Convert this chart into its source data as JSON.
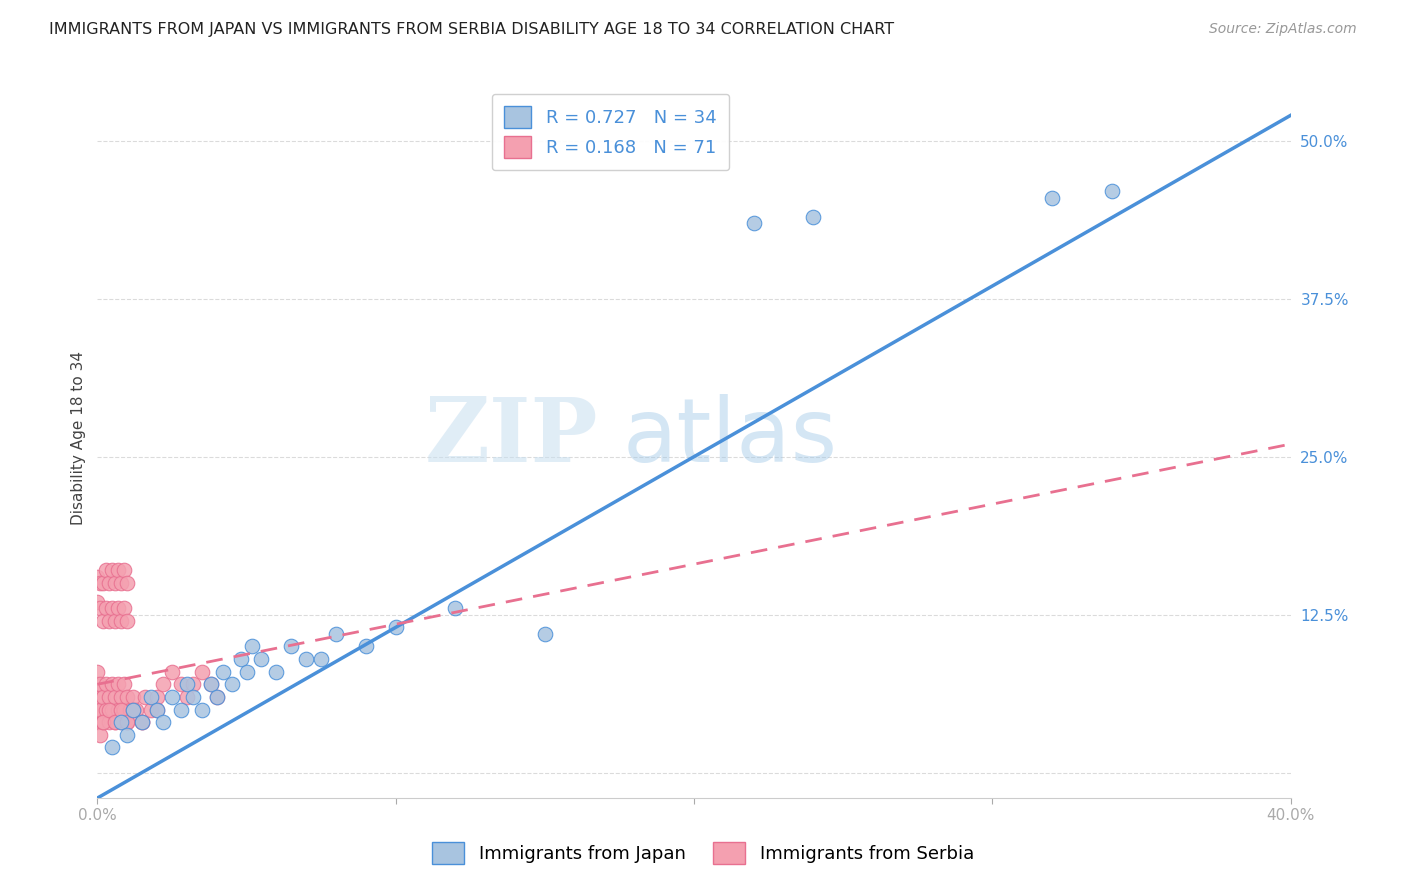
{
  "title": "IMMIGRANTS FROM JAPAN VS IMMIGRANTS FROM SERBIA DISABILITY AGE 18 TO 34 CORRELATION CHART",
  "source": "Source: ZipAtlas.com",
  "ylabel": "Disability Age 18 to 34",
  "xlim": [
    0.0,
    0.4
  ],
  "ylim": [
    -0.02,
    0.55
  ],
  "japan_R": 0.727,
  "japan_N": 34,
  "serbia_R": 0.168,
  "serbia_N": 71,
  "japan_color": "#a8c4e0",
  "serbia_color": "#f4a0b0",
  "japan_line_color": "#4a90d9",
  "serbia_line_color": "#e87090",
  "watermark_zip": "ZIP",
  "watermark_atlas": "atlas",
  "japan_scatter_x": [
    0.005,
    0.008,
    0.01,
    0.012,
    0.015,
    0.018,
    0.02,
    0.022,
    0.025,
    0.028,
    0.03,
    0.032,
    0.035,
    0.038,
    0.04,
    0.042,
    0.045,
    0.048,
    0.05,
    0.052,
    0.055,
    0.06,
    0.065,
    0.07,
    0.075,
    0.08,
    0.09,
    0.1,
    0.12,
    0.15,
    0.22,
    0.24,
    0.32,
    0.34
  ],
  "japan_scatter_y": [
    0.02,
    0.04,
    0.03,
    0.05,
    0.04,
    0.06,
    0.05,
    0.04,
    0.06,
    0.05,
    0.07,
    0.06,
    0.05,
    0.07,
    0.06,
    0.08,
    0.07,
    0.09,
    0.08,
    0.1,
    0.09,
    0.08,
    0.1,
    0.09,
    0.09,
    0.11,
    0.1,
    0.115,
    0.13,
    0.11,
    0.435,
    0.44,
    0.455,
    0.46
  ],
  "serbia_scatter_x": [
    0.0,
    0.0,
    0.0,
    0.0,
    0.0,
    0.001,
    0.001,
    0.001,
    0.002,
    0.002,
    0.003,
    0.003,
    0.004,
    0.004,
    0.005,
    0.005,
    0.006,
    0.006,
    0.007,
    0.007,
    0.008,
    0.008,
    0.009,
    0.009,
    0.01,
    0.01,
    0.011,
    0.012,
    0.013,
    0.015,
    0.016,
    0.018,
    0.02,
    0.022,
    0.025,
    0.028,
    0.03,
    0.032,
    0.035,
    0.038,
    0.04,
    0.0,
    0.001,
    0.002,
    0.003,
    0.004,
    0.005,
    0.006,
    0.007,
    0.008,
    0.009,
    0.01,
    0.0,
    0.001,
    0.002,
    0.003,
    0.004,
    0.005,
    0.006,
    0.007,
    0.008,
    0.009,
    0.01,
    0.002,
    0.004,
    0.006,
    0.008,
    0.01,
    0.012,
    0.015,
    0.02
  ],
  "serbia_scatter_y": [
    0.04,
    0.05,
    0.06,
    0.07,
    0.08,
    0.03,
    0.05,
    0.07,
    0.04,
    0.06,
    0.05,
    0.07,
    0.04,
    0.06,
    0.05,
    0.07,
    0.04,
    0.06,
    0.05,
    0.07,
    0.04,
    0.06,
    0.05,
    0.07,
    0.04,
    0.06,
    0.05,
    0.06,
    0.05,
    0.04,
    0.06,
    0.05,
    0.06,
    0.07,
    0.08,
    0.07,
    0.06,
    0.07,
    0.08,
    0.07,
    0.06,
    0.135,
    0.13,
    0.12,
    0.13,
    0.12,
    0.13,
    0.12,
    0.13,
    0.12,
    0.13,
    0.12,
    0.155,
    0.15,
    0.15,
    0.16,
    0.15,
    0.16,
    0.15,
    0.16,
    0.15,
    0.16,
    0.15,
    0.04,
    0.05,
    0.04,
    0.05,
    0.04,
    0.05,
    0.04,
    0.05
  ]
}
